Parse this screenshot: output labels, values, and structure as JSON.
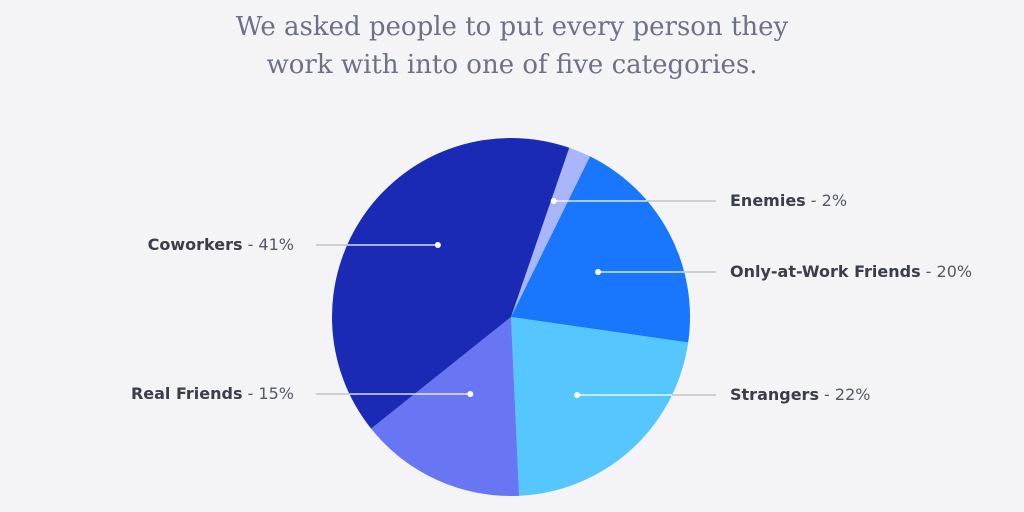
{
  "title_lines": [
    "We asked people to put every person they",
    "work with into one of five categories."
  ],
  "chart_data": {
    "type": "pie",
    "title": "We asked people to put every person they work with into one of five categories.",
    "slices": [
      {
        "label": "Enemies",
        "value": 2,
        "display": "2%",
        "color": "#a9b6fb",
        "label_side": "right"
      },
      {
        "label": "Only-at-Work Friends",
        "value": 20,
        "display": "20%",
        "color": "#1877fc",
        "label_side": "right"
      },
      {
        "label": "Strangers",
        "value": 22,
        "display": "22%",
        "color": "#56c7fe",
        "label_side": "right"
      },
      {
        "label": "Real Friends",
        "value": 15,
        "display": "15%",
        "color": "#6876f3",
        "label_side": "left"
      },
      {
        "label": "Coworkers",
        "value": 41,
        "display": "41%",
        "color": "#1a2ab5",
        "label_side": "left"
      }
    ],
    "start_direction": "top-right",
    "direction": "clockwise",
    "legend": "none"
  }
}
